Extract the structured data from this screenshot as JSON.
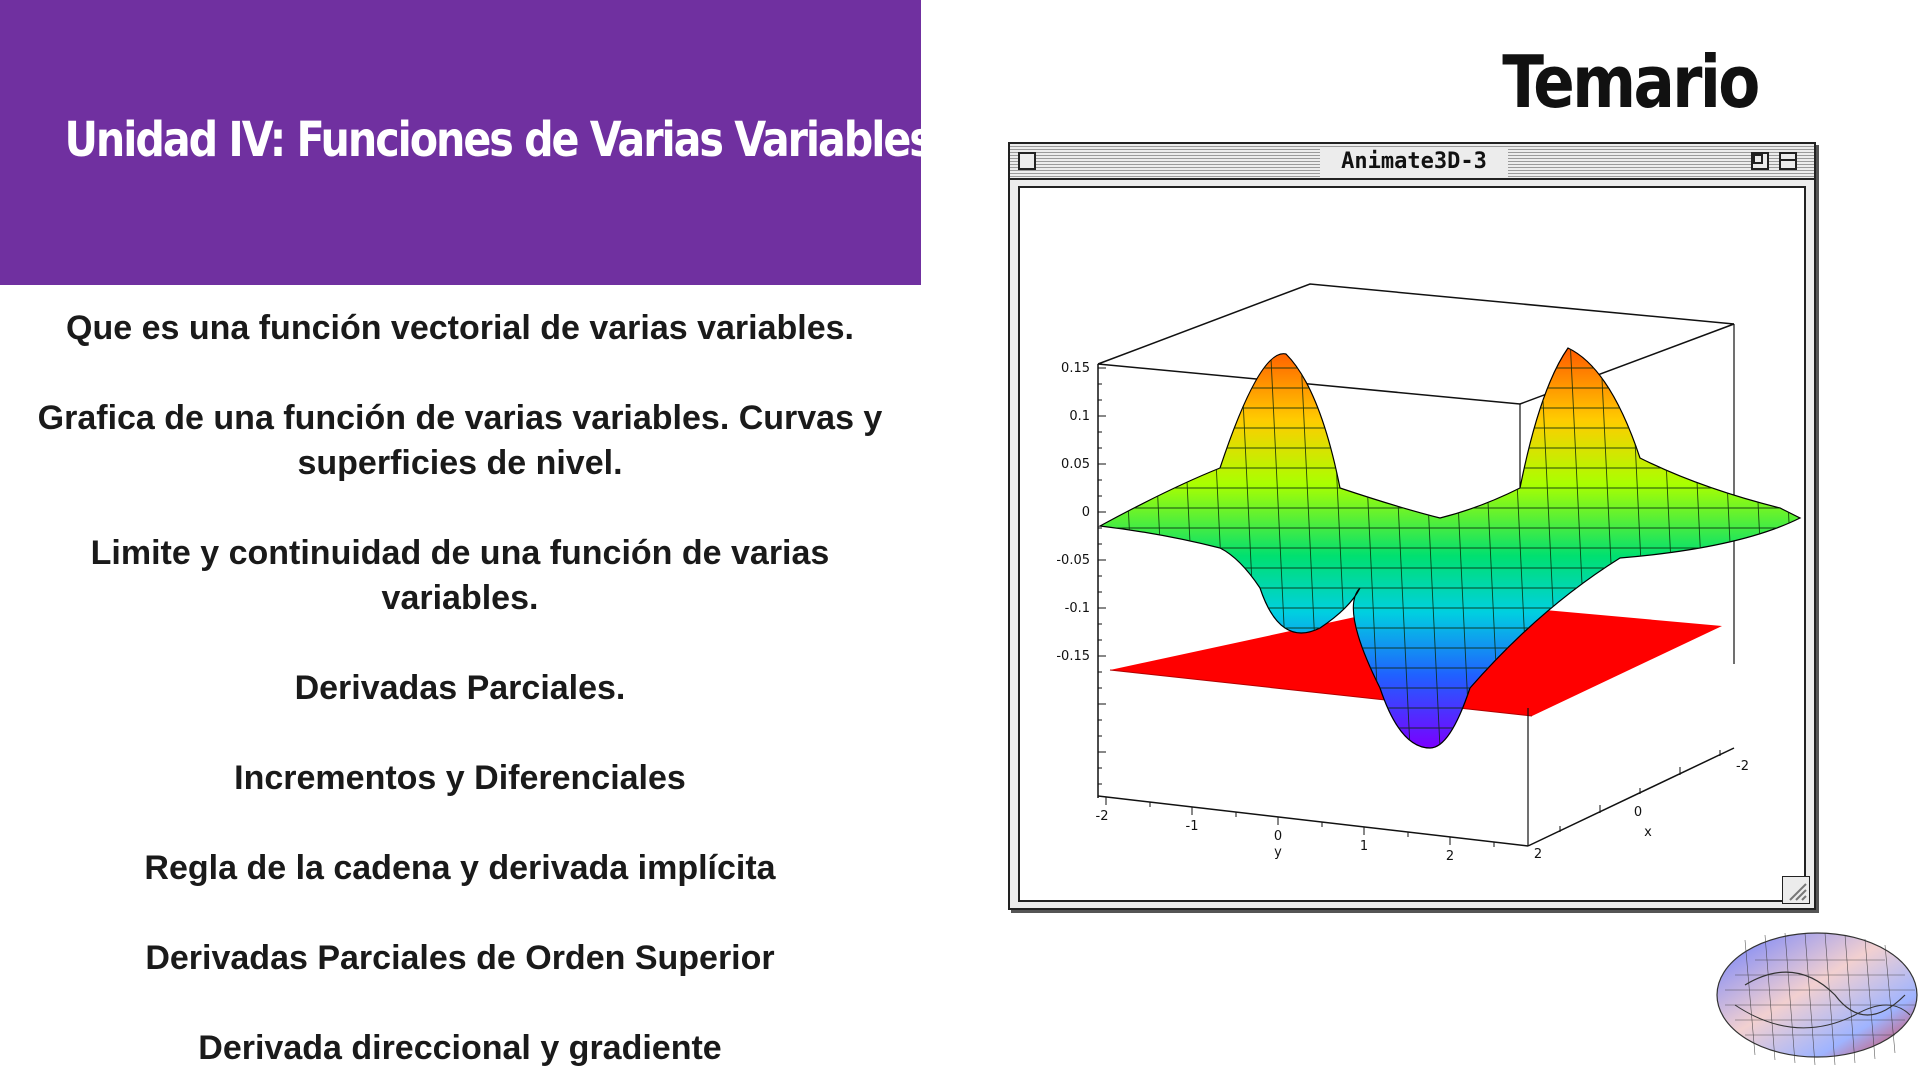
{
  "header": {
    "title": "Unidad IV: Funciones de Varias Variables"
  },
  "page_title": "Temario",
  "topics": [
    [
      "Que es una función vectorial de varias variables."
    ],
    [
      "Grafica de una función de varias variables. Curvas y",
      "superficies de nivel."
    ],
    [
      "Limite y continuidad de una función de varias",
      "variables."
    ],
    [
      "Derivadas Parciales."
    ],
    [
      "Incrementos y Diferenciales"
    ],
    [
      "Regla de la cadena y derivada implícita"
    ],
    [
      "Derivadas Parciales de Orden Superior"
    ],
    [
      "Derivada direccional y gradiente"
    ]
  ],
  "window": {
    "title": "Animate3D-3",
    "icons": [
      "close-box-icon",
      "zoom-box-icon",
      "collapse-box-icon",
      "resize-grip-icon"
    ]
  },
  "plot": {
    "z_ticks": [
      "0.15",
      "0.1",
      "0.05",
      "0",
      "-0.05",
      "-0.1",
      "-0.15"
    ],
    "y_ticks": [
      "-2",
      "-1",
      "0",
      "1",
      "2"
    ],
    "y_label": "y",
    "x_ticks": [
      "2",
      "0",
      "-2"
    ],
    "x_label": "x",
    "colors": {
      "floor": "#ff0000",
      "peak": "#ff5a00",
      "mid": "#7fff00",
      "trough": "#6a00ff"
    }
  },
  "decoration": {
    "icon": "torus-surface-icon"
  }
}
